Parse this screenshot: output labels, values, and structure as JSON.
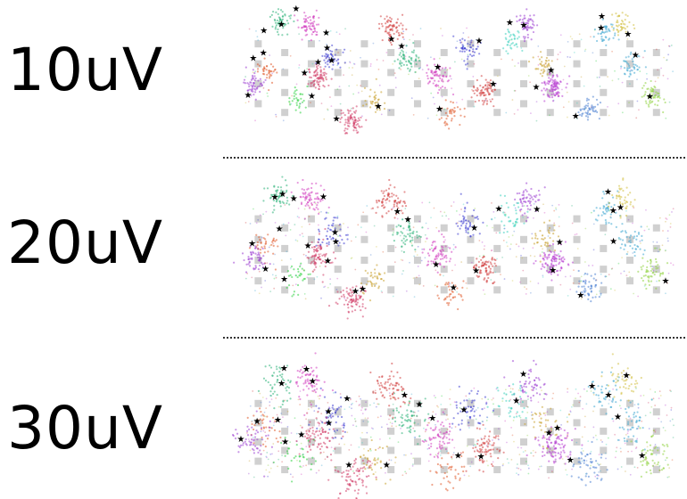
{
  "panels": [
    {
      "label": "10uV",
      "spread": 1.0,
      "noise_count": 260
    },
    {
      "label": "20uV",
      "spread": 1.25,
      "noise_count": 380
    },
    {
      "label": "30uV",
      "spread": 1.6,
      "noise_count": 560
    }
  ],
  "clusters": [
    {
      "color": "#2db37a",
      "count": 90
    },
    {
      "color": "#d13fc0",
      "count": 110
    },
    {
      "color": "#3f3fd1",
      "count": 80
    },
    {
      "color": "#d13f6a",
      "count": 130
    },
    {
      "color": "#e05a2a",
      "count": 60
    },
    {
      "color": "#3fa8d1",
      "count": 70
    },
    {
      "color": "#9c3fd1",
      "count": 90
    },
    {
      "color": "#c8a02d",
      "count": 60
    },
    {
      "color": "#d13f3f",
      "count": 120
    },
    {
      "color": "#8fd13f",
      "count": 90
    },
    {
      "color": "#3fd1c0",
      "count": 60
    },
    {
      "color": "#b83fd1",
      "count": 160
    },
    {
      "color": "#4a7fd1",
      "count": 80
    },
    {
      "color": "#2dd13f",
      "count": 50
    },
    {
      "color": "#d1c03f",
      "count": 70
    }
  ],
  "colors": {
    "probe_sites": "#d0d0d0",
    "markers": "#000000",
    "separator": "#333333"
  }
}
